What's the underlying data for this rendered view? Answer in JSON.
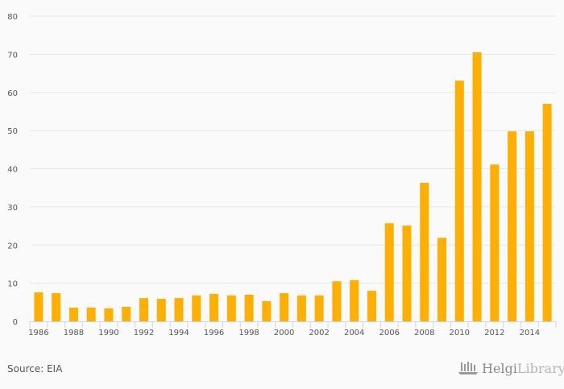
{
  "chart_data": {
    "type": "bar",
    "title": "",
    "xlabel": "",
    "ylabel": "",
    "ylim": [
      0,
      80
    ],
    "yticks": [
      0,
      10,
      20,
      30,
      40,
      50,
      60,
      70,
      80
    ],
    "grid": true,
    "bar_color": "#ffaf00",
    "categories": [
      "1986",
      "1987",
      "1988",
      "1989",
      "1990",
      "1991",
      "1992",
      "1993",
      "1994",
      "1995",
      "1996",
      "1997",
      "1998",
      "1999",
      "2000",
      "2001",
      "2002",
      "2003",
      "2004",
      "2005",
      "2006",
      "2007",
      "2008",
      "2009",
      "2010",
      "2011",
      "2012",
      "2013",
      "2014",
      "2015"
    ],
    "xtick_labels": [
      "1986",
      "1988",
      "1990",
      "1992",
      "1994",
      "1996",
      "1998",
      "2000",
      "2002",
      "2004",
      "2006",
      "2008",
      "2010",
      "2012",
      "2014"
    ],
    "values": [
      7.6,
      7.4,
      3.6,
      3.6,
      3.4,
      3.8,
      6.1,
      5.9,
      6.1,
      6.8,
      7.2,
      6.8,
      7.0,
      5.3,
      7.4,
      6.8,
      6.8,
      10.5,
      10.8,
      8.0,
      25.7,
      25.1,
      36.3,
      21.9,
      63.1,
      70.5,
      41.1,
      49.8,
      49.8,
      57.0
    ]
  },
  "footer": {
    "source": "Source: EIA",
    "logo_part1": "Helgi",
    "logo_part2": "Library."
  }
}
